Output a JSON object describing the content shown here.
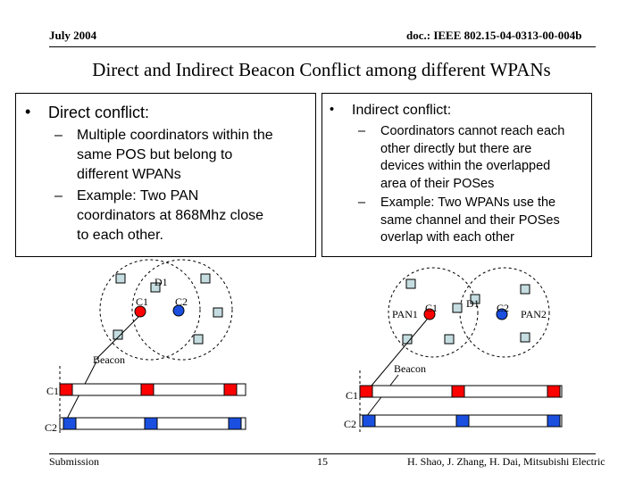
{
  "header": {
    "date": "July 2004",
    "doc_id": "doc.: IEEE 802.15-04-0313-00-004b"
  },
  "slide": {
    "title": "Direct and Indirect Beacon Conflict among different WPANs"
  },
  "left_box": {
    "bullet": "•",
    "heading": "Direct conflict:",
    "items": [
      {
        "dash": "–",
        "lines": [
          "Multiple coordinators within the",
          "same POS but belong to",
          "different WPANs"
        ]
      },
      {
        "dash": "–",
        "lines": [
          "Example: Two PAN",
          "coordinators at 868Mhz close",
          "to each other."
        ]
      }
    ]
  },
  "right_box": {
    "bullet": "•",
    "heading": "Indirect conflict:",
    "items": [
      {
        "dash": "–",
        "lines": [
          "Coordinators cannot reach each",
          "other directly but there are",
          "devices within the overlapped",
          "area of their POSes"
        ]
      },
      {
        "dash": "–",
        "lines": [
          "Example: Two WPANs use the",
          "same channel and their POSes",
          "overlap with each other"
        ]
      }
    ]
  },
  "left_diagram": {
    "d1": "D1",
    "c1": "C1",
    "c2": "C2",
    "beacon": "Beacon",
    "row1": "C1",
    "row2": "C2"
  },
  "right_diagram": {
    "pan1": "PAN1",
    "c1": "C1",
    "d1": "D1",
    "c2": "C2",
    "pan2": "PAN2",
    "beacon": "Beacon",
    "row1": "C1",
    "row2": "C2"
  },
  "colors": {
    "c1": "#ff0000",
    "c2": "#1a4fe0",
    "device": "#c5dde0"
  },
  "footer": {
    "left": "Submission",
    "page": "15",
    "authors": "H. Shao, J. Zhang, H. Dai, Mitsubishi Electric"
  }
}
